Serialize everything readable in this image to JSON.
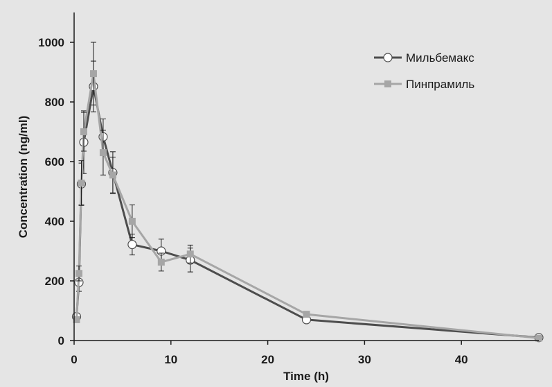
{
  "chart_data": {
    "type": "line",
    "xlabel": "Time (h)",
    "ylabel": "Concentration (ng/ml)",
    "xlim": [
      0,
      48
    ],
    "ylim": [
      0,
      1100
    ],
    "xticks": [
      0,
      10,
      20,
      30,
      40
    ],
    "yticks": [
      0,
      200,
      400,
      600,
      800,
      1000
    ],
    "grid": false,
    "legend_position": "top-right",
    "series": [
      {
        "name": "Мильбемакс",
        "color": "#4d4d4d",
        "marker": "circle",
        "points": [
          {
            "x": 0.25,
            "y": 80,
            "err": 10
          },
          {
            "x": 0.5,
            "y": 195,
            "err": 30
          },
          {
            "x": 0.75,
            "y": 525,
            "err": 70
          },
          {
            "x": 1,
            "y": 665,
            "err": 105
          },
          {
            "x": 2,
            "y": 852,
            "err": 85
          },
          {
            "x": 3,
            "y": 683,
            "err": 60
          },
          {
            "x": 4,
            "y": 563,
            "err": 70
          },
          {
            "x": 6,
            "y": 322,
            "err": 35
          },
          {
            "x": 9,
            "y": 300,
            "err": 40
          },
          {
            "x": 12,
            "y": 270,
            "err": 40
          },
          {
            "x": 24,
            "y": 70,
            "err": 5
          },
          {
            "x": 48,
            "y": 10,
            "err": 3
          }
        ]
      },
      {
        "name": "Пинпрамиль",
        "color": "#a6a6a6",
        "marker": "square",
        "points": [
          {
            "x": 0.25,
            "y": 70,
            "err": 8
          },
          {
            "x": 0.5,
            "y": 225,
            "err": 25
          },
          {
            "x": 0.75,
            "y": 528,
            "err": 75
          },
          {
            "x": 1,
            "y": 700,
            "err": 65
          },
          {
            "x": 2,
            "y": 895,
            "err": 105
          },
          {
            "x": 3,
            "y": 630,
            "err": 75
          },
          {
            "x": 4,
            "y": 555,
            "err": 60
          },
          {
            "x": 6,
            "y": 400,
            "err": 55
          },
          {
            "x": 9,
            "y": 263,
            "err": 30
          },
          {
            "x": 12,
            "y": 290,
            "err": 30
          },
          {
            "x": 24,
            "y": 88,
            "err": 5
          },
          {
            "x": 48,
            "y": 8,
            "err": 3
          }
        ]
      }
    ]
  }
}
